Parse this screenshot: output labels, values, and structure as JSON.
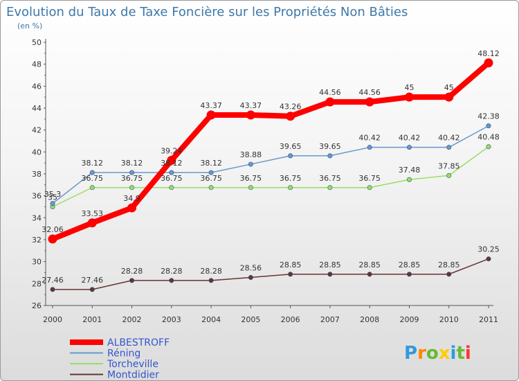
{
  "chart_data": {
    "type": "line",
    "title": "Evolution du Taux de Taxe Foncière sur les Propriétés Non Bâties",
    "subtitle": "(en %)",
    "xlabel": "",
    "ylabel": "",
    "ylim": [
      26,
      50
    ],
    "yticks": [
      "26",
      "28",
      "30",
      "32",
      "34",
      "36",
      "38",
      "40",
      "42",
      "44",
      "46",
      "48",
      "50"
    ],
    "categories": [
      "2000",
      "2001",
      "2002",
      "2003",
      "2004",
      "2005",
      "2006",
      "2007",
      "2008",
      "2009",
      "2010",
      "2011"
    ],
    "legend_position": "bottom-left",
    "grid": false,
    "series": [
      {
        "name": "ALBESTROFF",
        "color": "#ff0000",
        "values": [
          32.06,
          33.53,
          34.9,
          39.24,
          43.37,
          43.37,
          43.26,
          44.56,
          44.56,
          45,
          45,
          48.12
        ],
        "labels": [
          "32.06",
          "33.53",
          "34.9",
          "39.24",
          "43.37",
          "43.37",
          "43.26",
          "44.56",
          "44.56",
          "45",
          "45",
          "48.12"
        ]
      },
      {
        "name": "Réning",
        "color": "#6699cc",
        "values": [
          35.3,
          38.12,
          38.12,
          38.12,
          38.12,
          38.88,
          39.65,
          39.65,
          40.42,
          40.42,
          40.42,
          42.38
        ],
        "labels": [
          "35.3",
          "38.12",
          "38.12",
          "38.12",
          "38.12",
          "38.88",
          "39.65",
          "39.65",
          "40.42",
          "40.42",
          "40.42",
          "42.38"
        ]
      },
      {
        "name": "Torcheville",
        "color": "#99dd66",
        "values": [
          35,
          36.75,
          36.75,
          36.75,
          36.75,
          36.75,
          36.75,
          36.75,
          36.75,
          37.48,
          37.85,
          40.48
        ],
        "labels": [
          "35",
          "36.75",
          "36.75",
          "36.75",
          "36.75",
          "36.75",
          "36.75",
          "36.75",
          "36.75",
          "37.48",
          "37.85",
          "40.48"
        ]
      },
      {
        "name": "Montdidier",
        "color": "#663333",
        "values": [
          27.46,
          27.46,
          28.28,
          28.28,
          28.28,
          28.56,
          28.85,
          28.85,
          28.85,
          28.85,
          28.85,
          30.25
        ],
        "labels": [
          "27.46",
          "27.46",
          "28.28",
          "28.28",
          "28.28",
          "28.56",
          "28.85",
          "28.85",
          "28.85",
          "28.85",
          "28.85",
          "30.25"
        ]
      }
    ]
  },
  "logo": {
    "text": "Proxiti",
    "colors": [
      "#3399dd",
      "#ff8800",
      "#66bb33",
      "#ffcc00",
      "#3399dd",
      "#66bb33",
      "#ff3333"
    ]
  }
}
